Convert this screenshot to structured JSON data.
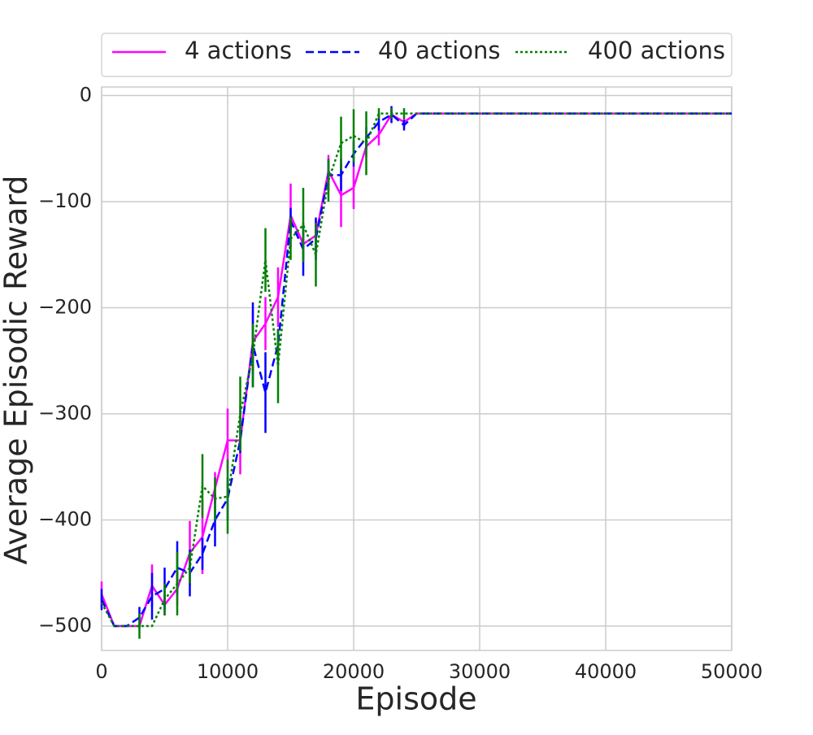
{
  "chart_data": {
    "type": "line",
    "xlabel": "Episode",
    "ylabel": "Average Episodic Reward",
    "x": [
      0,
      1000,
      2000,
      3000,
      4000,
      5000,
      6000,
      7000,
      8000,
      9000,
      10000,
      11000,
      12000,
      13000,
      14000,
      15000,
      16000,
      17000,
      18000,
      19000,
      20000,
      21000,
      22000,
      23000,
      24000,
      25000,
      26000,
      27000,
      28000,
      29000,
      30000,
      31000,
      32000,
      33000,
      34000,
      35000,
      36000,
      37000,
      38000,
      39000,
      40000,
      41000,
      42000,
      43000,
      44000,
      45000,
      46000,
      47000,
      48000,
      49000,
      50000
    ],
    "xlim": [
      0,
      50000
    ],
    "xticks": [
      0,
      10000,
      20000,
      30000,
      40000,
      50000
    ],
    "ylim": [
      -523,
      8
    ],
    "yticks": [
      {
        "value": -500,
        "label": "−500"
      },
      {
        "value": -400,
        "label": "−400"
      },
      {
        "value": -300,
        "label": "−300"
      },
      {
        "value": -200,
        "label": "−200"
      },
      {
        "value": -100,
        "label": "−100"
      },
      0
    ],
    "grid": true,
    "legend": "top",
    "series": [
      {
        "name": "4 actions",
        "color": "#ff00ff",
        "style": "solid",
        "values": [
          -470,
          -500,
          -500,
          -500,
          -462,
          -480,
          -465,
          -431,
          -416,
          -370,
          -325,
          -325,
          -232,
          -215,
          -190,
          -113,
          -140,
          -132,
          -71,
          -94,
          -87,
          -48,
          -37,
          -18,
          -25,
          -17,
          -17,
          -17,
          -17,
          -17,
          -17,
          -17,
          -17,
          -17,
          -17,
          -17,
          -17,
          -17,
          -17,
          -17,
          -17,
          -17,
          -17,
          -17,
          -17,
          -17,
          -17,
          -17,
          -17,
          -17,
          -17
        ],
        "errors": [
          12,
          0,
          0,
          0,
          20,
          10,
          15,
          30,
          35,
          15,
          30,
          32,
          30,
          25,
          28,
          30,
          15,
          15,
          15,
          30,
          20,
          10,
          10,
          5,
          5,
          0,
          0,
          0,
          0,
          0,
          0,
          0,
          0,
          0,
          0,
          0,
          0,
          0,
          0,
          0,
          0,
          0,
          0,
          0,
          0,
          0,
          0,
          0,
          0,
          0,
          0
        ]
      },
      {
        "name": "40 actions",
        "color": "#0000ff",
        "style": "dashed",
        "values": [
          -475,
          -500,
          -500,
          -492,
          -472,
          -465,
          -445,
          -450,
          -432,
          -400,
          -380,
          -325,
          -235,
          -280,
          -235,
          -118,
          -145,
          -135,
          -75,
          -75,
          -55,
          -40,
          -25,
          -18,
          -28,
          -17,
          -17,
          -17,
          -17,
          -17,
          -17,
          -17,
          -17,
          -17,
          -17,
          -17,
          -17,
          -17,
          -17,
          -17,
          -17,
          -17,
          -17,
          -17,
          -17,
          -17,
          -17,
          -17,
          -17,
          -17,
          -17
        ],
        "errors": [
          10,
          0,
          0,
          10,
          22,
          20,
          25,
          22,
          15,
          25,
          20,
          12,
          40,
          38,
          15,
          12,
          25,
          20,
          15,
          15,
          12,
          10,
          8,
          8,
          5,
          0,
          0,
          0,
          0,
          0,
          0,
          0,
          0,
          0,
          0,
          0,
          0,
          0,
          0,
          0,
          0,
          0,
          0,
          0,
          0,
          0,
          0,
          0,
          0,
          0,
          0
        ]
      },
      {
        "name": "400 actions",
        "color": "#008000",
        "style": "dotted",
        "values": [
          -478,
          -500,
          -500,
          -500,
          -500,
          -475,
          -460,
          -445,
          -368,
          -380,
          -378,
          -300,
          -245,
          -155,
          -255,
          -135,
          -122,
          -150,
          -80,
          -45,
          -38,
          -45,
          -17,
          -17,
          -17,
          -17,
          -17,
          -17,
          -17,
          -17,
          -17,
          -17,
          -17,
          -17,
          -17,
          -17,
          -17,
          -17,
          -17,
          -17,
          -17,
          -17,
          -17,
          -17,
          -17,
          -17,
          -17,
          -17,
          -17,
          -17,
          -17
        ],
        "errors": [
          0,
          0,
          0,
          12,
          0,
          15,
          30,
          15,
          30,
          20,
          35,
          35,
          30,
          30,
          35,
          20,
          35,
          30,
          20,
          25,
          25,
          30,
          5,
          5,
          5,
          0,
          0,
          0,
          0,
          0,
          0,
          0,
          0,
          0,
          0,
          0,
          0,
          0,
          0,
          0,
          0,
          0,
          0,
          0,
          0,
          0,
          0,
          0,
          0,
          0,
          0
        ]
      }
    ]
  }
}
